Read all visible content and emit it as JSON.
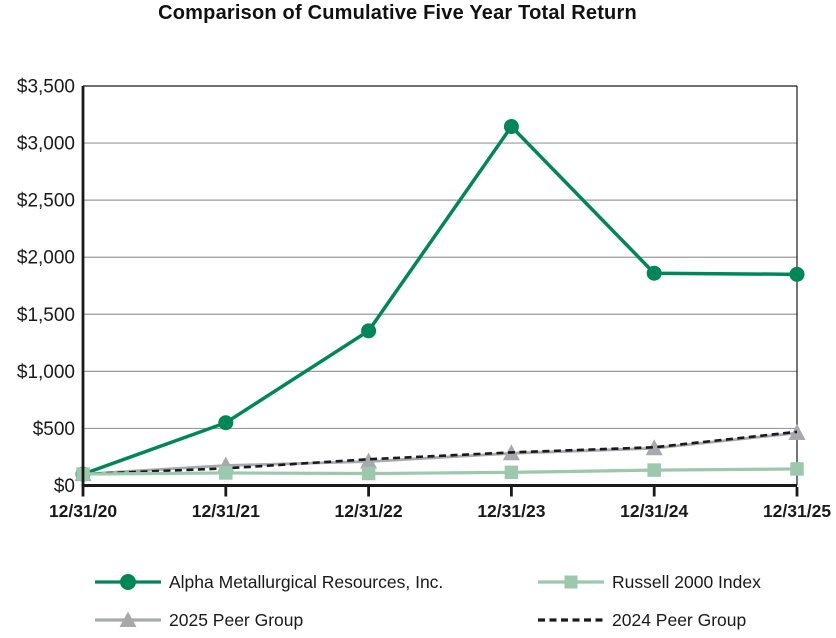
{
  "title": "Comparison of Cumulative Five Year Total Return",
  "chart_data": {
    "type": "line",
    "title": "Comparison of Cumulative Five Year Total Return",
    "categories": [
      "12/31/20",
      "12/31/21",
      "12/31/22",
      "12/31/23",
      "12/31/24",
      "12/31/25"
    ],
    "xlabel": "",
    "ylabel": "",
    "ylim": [
      0,
      3500
    ],
    "grid": "horizontal",
    "legend_position": "bottom",
    "y_ticks": [
      {
        "value": 0,
        "label": "$0"
      },
      {
        "value": 500,
        "label": "$500"
      },
      {
        "value": 1000,
        "label": "$1,000"
      },
      {
        "value": 1500,
        "label": "$1,500"
      },
      {
        "value": 2000,
        "label": "$2,000"
      },
      {
        "value": 2500,
        "label": "$2,500"
      },
      {
        "value": 3000,
        "label": "$3,000"
      },
      {
        "value": 3500,
        "label": "$3,500"
      }
    ],
    "series": [
      {
        "name": "Alpha Metallurgical Resources, Inc.",
        "color": "#008758",
        "marker": "circle",
        "line": "solid",
        "values": [
          100,
          550,
          1355,
          3145,
          1860,
          1850
        ]
      },
      {
        "name": "Russell 2000 Index",
        "color": "#9CC8AD",
        "marker": "square",
        "line": "solid",
        "values": [
          100,
          110,
          105,
          115,
          135,
          145
        ]
      },
      {
        "name": "2025 Peer Group",
        "color": "#A6AAAE",
        "marker": "triangle",
        "line": "solid",
        "values": [
          100,
          175,
          210,
          282,
          326,
          460
        ]
      },
      {
        "name": "2024 Peer Group",
        "color": "#1A1A1A",
        "marker": "none",
        "line": "dashed",
        "values": [
          100,
          150,
          230,
          290,
          335,
          470
        ]
      }
    ],
    "axis_colors": {
      "axis_line": "#1a1a1a",
      "gridline": "#9a9a9a",
      "tick_label": "#1a1a1a"
    }
  }
}
